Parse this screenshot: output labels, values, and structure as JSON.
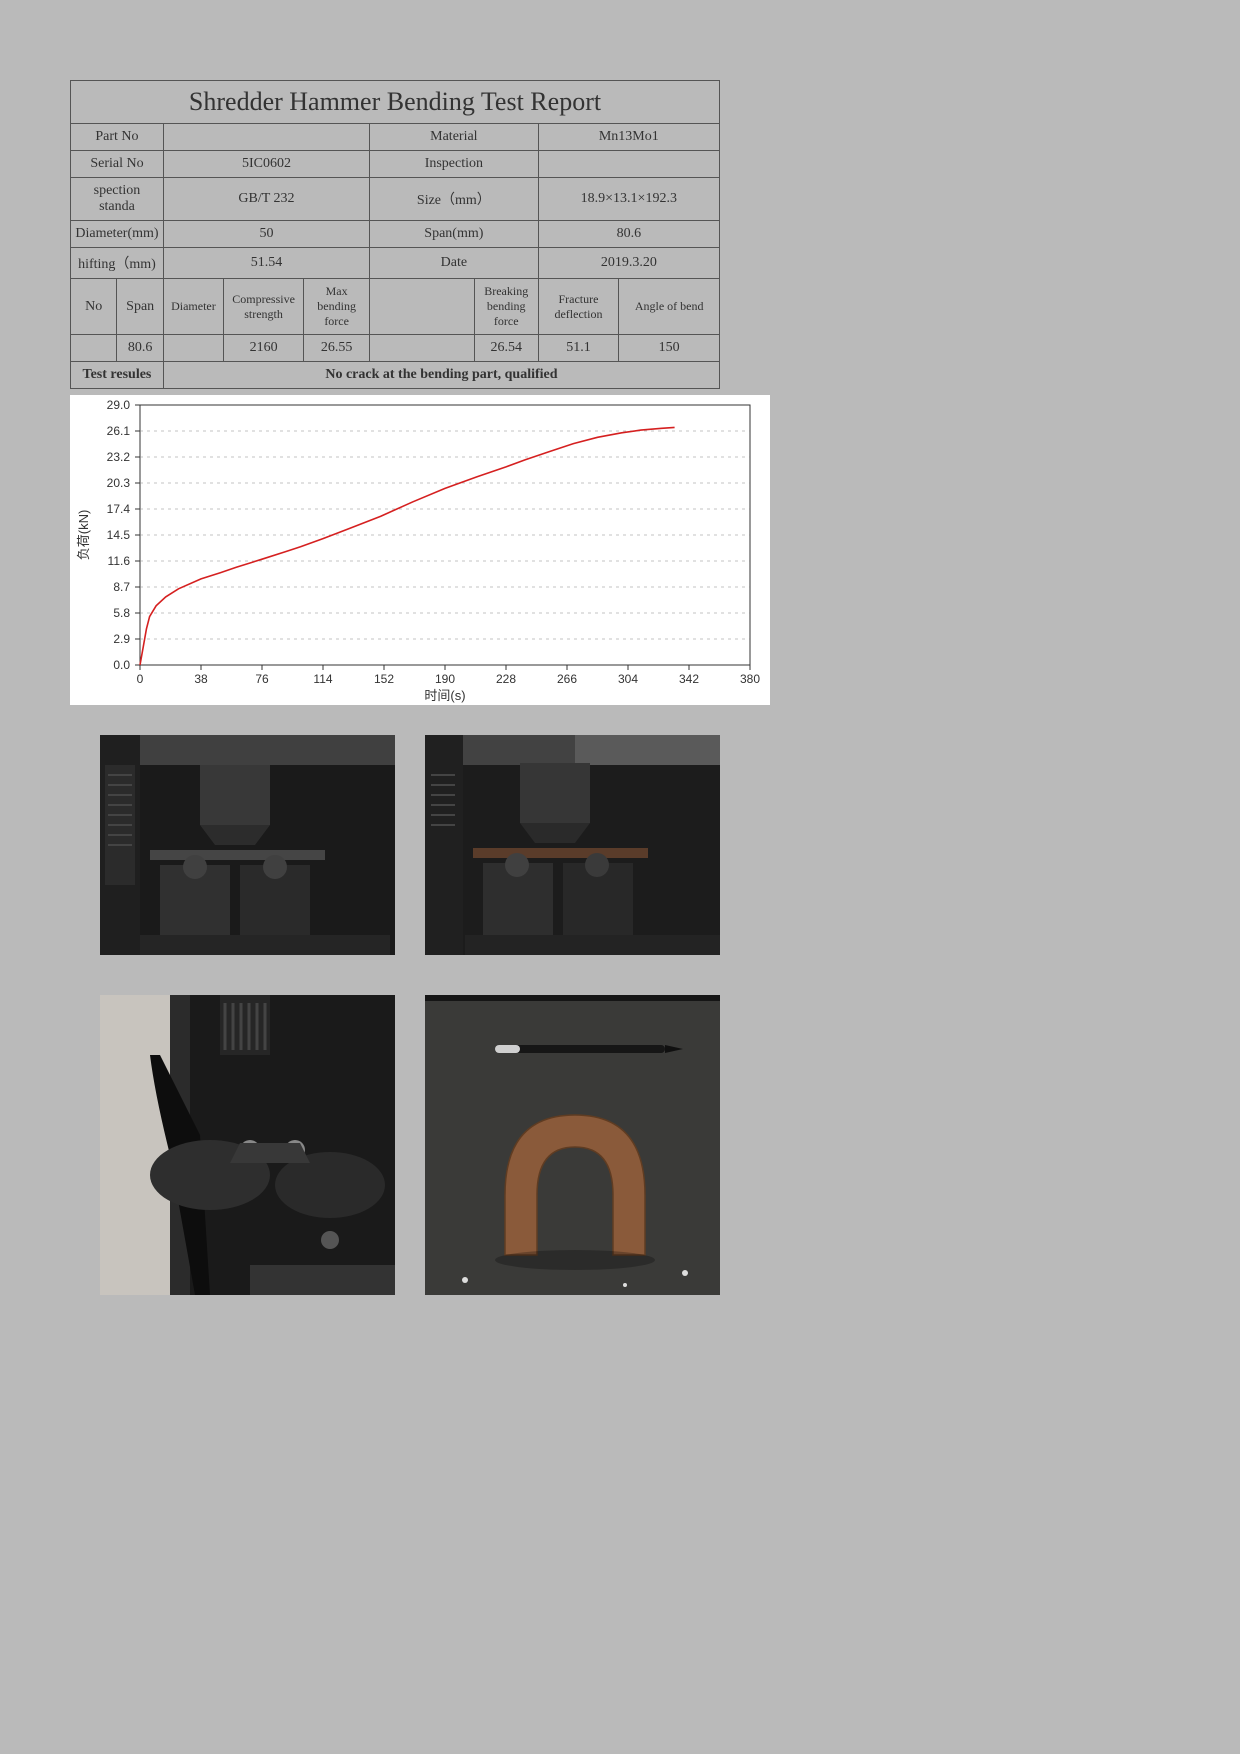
{
  "report": {
    "title": "Shredder Hammer Bending Test Report",
    "header_rows": [
      {
        "label1": "Part No",
        "value1": "",
        "label2": "Material",
        "value2": "Mn13Mo1"
      },
      {
        "label1": "Serial No",
        "value1": "5IC0602",
        "label2": "Inspection",
        "value2": ""
      },
      {
        "label1": "spection standa",
        "value1": "GB/T 232",
        "label2": "Size（mm）",
        "value2": "18.9×13.1×192.3"
      },
      {
        "label1": "Diameter(mm)",
        "value1": "50",
        "label2": "Span(mm)",
        "value2": "80.6"
      },
      {
        "label1": "hifting（mm)",
        "value1": "51.54",
        "label2": "Date",
        "value2": "2019.3.20"
      }
    ],
    "data_columns": [
      "No",
      "Span",
      "Diameter",
      "Compressive strength",
      "Max bending force",
      "",
      "Breaking bending force",
      "Fracture deflection",
      "Angle of bend"
    ],
    "data_row": [
      "",
      "80.6",
      "",
      "2160",
      "26.55",
      "",
      "26.54",
      "51.1",
      "150"
    ],
    "result_label": "Test resules",
    "result_text": "No crack at the bending part, qualified"
  },
  "chart": {
    "type": "line",
    "xlabel": "时间(s)",
    "ylabel": "负荷(kN)",
    "xlim": [
      0,
      380
    ],
    "ylim": [
      0.0,
      29.0
    ],
    "xtick_step": 38,
    "ytick_step": 2.9,
    "x_ticks": [
      0,
      38,
      76,
      114,
      152,
      190,
      228,
      266,
      304,
      342,
      380
    ],
    "y_ticks": [
      0.0,
      2.9,
      5.8,
      8.7,
      11.6,
      14.5,
      17.4,
      20.3,
      23.2,
      26.1,
      29.0
    ],
    "line_color": "#d52020",
    "tick_color": "#333333",
    "grid_color": "#888888",
    "background_color": "#ffffff",
    "tick_fontsize": 12,
    "label_fontsize": 13,
    "data_points": [
      [
        0,
        0.0
      ],
      [
        2,
        2.0
      ],
      [
        4,
        4.0
      ],
      [
        6,
        5.4
      ],
      [
        10,
        6.6
      ],
      [
        16,
        7.6
      ],
      [
        24,
        8.5
      ],
      [
        38,
        9.6
      ],
      [
        50,
        10.3
      ],
      [
        60,
        10.9
      ],
      [
        76,
        11.8
      ],
      [
        90,
        12.6
      ],
      [
        100,
        13.2
      ],
      [
        114,
        14.1
      ],
      [
        130,
        15.2
      ],
      [
        150,
        16.6
      ],
      [
        170,
        18.2
      ],
      [
        190,
        19.7
      ],
      [
        210,
        21.0
      ],
      [
        228,
        22.1
      ],
      [
        240,
        22.9
      ],
      [
        255,
        23.8
      ],
      [
        270,
        24.7
      ],
      [
        285,
        25.4
      ],
      [
        300,
        25.9
      ],
      [
        312,
        26.2
      ],
      [
        325,
        26.4
      ],
      [
        333,
        26.5
      ]
    ]
  },
  "photos": {
    "items": [
      {
        "name": "photo-test-setup-1",
        "desc": "bending machine press on specimen"
      },
      {
        "name": "photo-test-setup-2",
        "desc": "bending machine press on specimen side"
      },
      {
        "name": "photo-test-setup-3",
        "desc": "bending rollers closeup"
      },
      {
        "name": "photo-result-specimen",
        "desc": "bent specimen U shape with pen"
      }
    ]
  }
}
